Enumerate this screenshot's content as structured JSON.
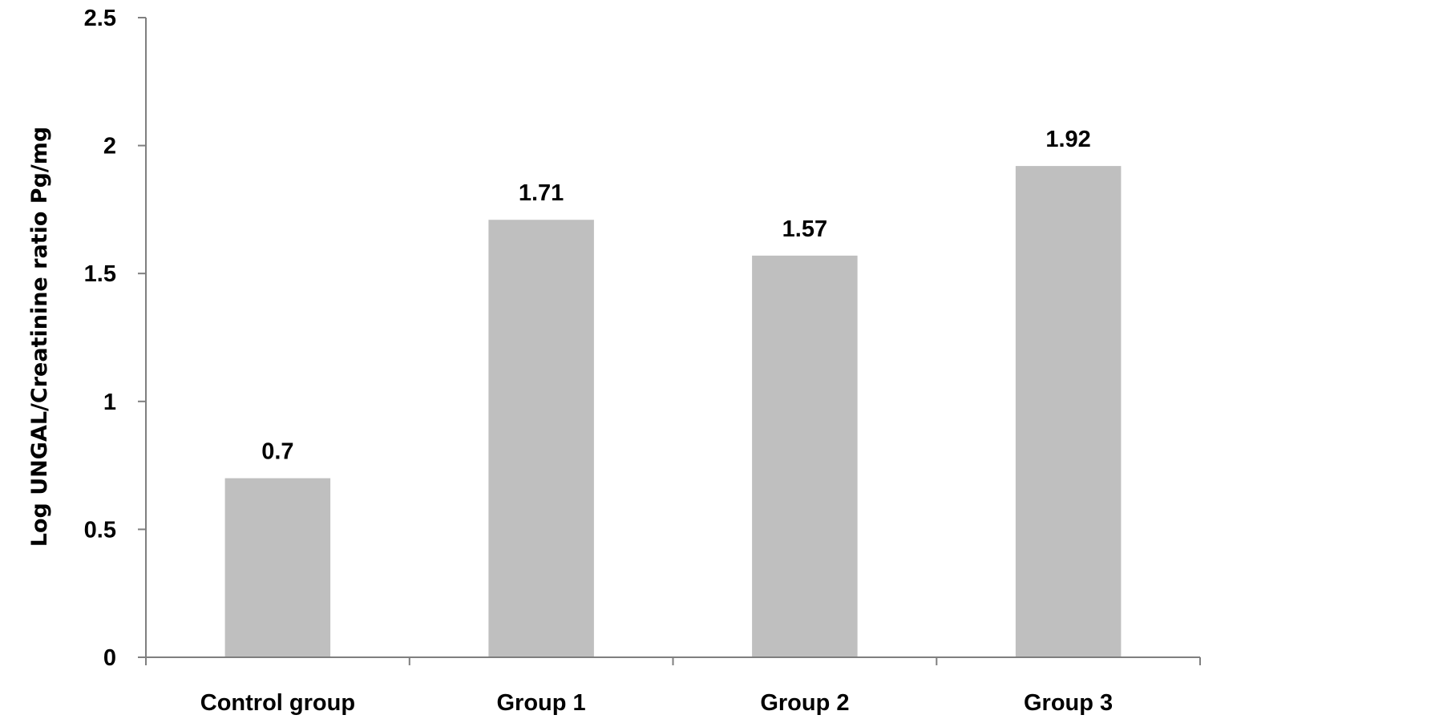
{
  "chart_data": {
    "type": "bar",
    "categories": [
      "Control group",
      "Group 1",
      "Group 2",
      "Group 3"
    ],
    "values": [
      0.7,
      1.71,
      1.57,
      1.92
    ],
    "data_labels": [
      "0.7",
      "1.71",
      "1.57",
      "1.92"
    ],
    "ylabel": "Log UNGAL/Creatinine ratio Pg/mg",
    "xlabel": "",
    "ylim": [
      0,
      2.5
    ],
    "yticks": [
      0,
      0.5,
      1,
      1.5,
      2,
      2.5
    ],
    "ytick_labels": [
      "0",
      "0.5",
      "1",
      "1.5",
      "2",
      "2.5"
    ],
    "grid": false,
    "legend": "none",
    "colors": {
      "bar": "#bfbfbf",
      "axis": "#7f7f7f",
      "text": "#000000"
    }
  }
}
